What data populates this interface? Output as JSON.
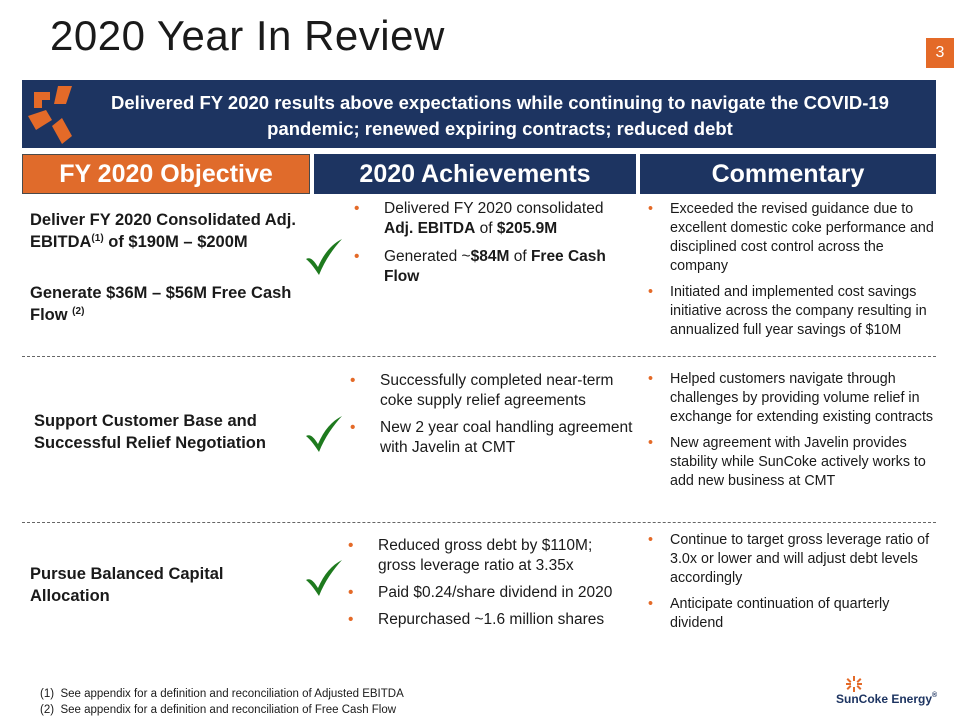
{
  "slide": {
    "title": "2020 Year In Review",
    "page_number": "3",
    "banner": "Delivered FY 2020 results above expectations while continuing to navigate the COVID-19 pandemic; renewed expiring contracts; reduced debt"
  },
  "headers": {
    "objective": "FY 2020 Objective",
    "achievements": "2020 Achievements",
    "commentary": "Commentary"
  },
  "rows": [
    {
      "objective_a_pre": "Deliver FY 2020 Consolidated Adj. EBITDA",
      "objective_a_sup": "(1)",
      "objective_a_post": " of $190M – $200M",
      "objective_b_pre": "Generate $36M – $56M Free Cash Flow ",
      "objective_b_sup": "(2)",
      "achievements": [
        {
          "t1": "Delivered FY 2020 consolidated ",
          "b1": "Adj. EBITDA",
          "t2": " of ",
          "b2": "$205.9M"
        },
        {
          "t1": "Generated ~",
          "b1": "$84M",
          "t2": " of ",
          "b2": "Free Cash Flow"
        }
      ],
      "commentary": [
        "Exceeded the revised guidance due to excellent domestic coke performance and disciplined cost control across the company",
        "Initiated and implemented cost savings initiative across the company resulting in annualized full year savings of $10M"
      ]
    },
    {
      "objective": "Support Customer Base and Successful Relief Negotiation",
      "achievements": [
        "Successfully completed near-term coke supply relief agreements",
        "New 2 year coal handling agreement with Javelin at CMT"
      ],
      "commentary": [
        "Helped customers navigate through challenges by providing volume relief in exchange for extending existing contracts",
        "New agreement with Javelin provides stability while SunCoke actively works to add new business at CMT"
      ]
    },
    {
      "objective": "Pursue Balanced Capital Allocation",
      "achievements": [
        "Reduced gross debt by $110M; gross leverage ratio at 3.35x",
        "Paid $0.24/share dividend in 2020",
        "Repurchased ~1.6 million shares"
      ],
      "commentary": [
        "Continue to target gross leverage ratio of 3.0x or lower and will adjust debt levels accordingly",
        "Anticipate continuation of quarterly dividend"
      ]
    }
  ],
  "bullet_glyph": "•",
  "footnotes": [
    {
      "num": "(1)",
      "text": "See appendix for a definition and reconciliation of Adjusted EBITDA"
    },
    {
      "num": "(2)",
      "text": "See appendix for a definition and reconciliation of Free Cash Flow"
    }
  ],
  "logo": {
    "text": "SunCoke Energy",
    "mark": "®"
  },
  "colors": {
    "navy": "#1d3461",
    "orange": "#e06b2b",
    "check_green": "#1e7a1e"
  }
}
